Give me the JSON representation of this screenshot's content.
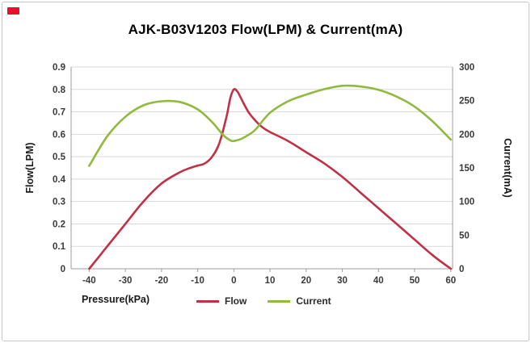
{
  "corner_mark_color": "#e8112d",
  "chart_data": {
    "type": "line",
    "title": "AJK-B03V1203 Flow(LPM) & Current(mA)",
    "xlabel": "Pressure(kPa)",
    "ylabel_left": "Flow(LPM)",
    "ylabel_right": "Current(mA)",
    "xlim": [
      -45,
      60.5
    ],
    "ylim_left": [
      0,
      0.9
    ],
    "ylim_right": [
      0,
      300
    ],
    "x_ticks": [
      -40,
      -30,
      -20,
      -10,
      0,
      10,
      20,
      30,
      40,
      50,
      60
    ],
    "left_ticks": [
      0,
      0.1,
      0.2,
      0.3,
      0.4,
      0.5,
      0.6,
      0.7,
      0.8,
      0.9
    ],
    "right_ticks": [
      0,
      50,
      100,
      150,
      200,
      250,
      300
    ],
    "grid": true,
    "grid_color": "#d9d9d9",
    "axis_color": "#9e9e9e",
    "legend_position": "bottom",
    "series": [
      {
        "name": "Flow",
        "axis": "left",
        "color": "#c13145",
        "x": [
          -40,
          -35,
          -30,
          -25,
          -20,
          -15,
          -12,
          -10,
          -8,
          -6,
          -4,
          -2,
          -1,
          0,
          1,
          2,
          4,
          6,
          8,
          10,
          15,
          20,
          25,
          30,
          35,
          40,
          45,
          50,
          55,
          60
        ],
        "y": [
          0,
          0.1,
          0.2,
          0.3,
          0.38,
          0.43,
          0.45,
          0.46,
          0.47,
          0.5,
          0.56,
          0.68,
          0.76,
          0.8,
          0.79,
          0.76,
          0.7,
          0.66,
          0.63,
          0.61,
          0.57,
          0.52,
          0.47,
          0.41,
          0.34,
          0.27,
          0.2,
          0.13,
          0.06,
          0
        ]
      },
      {
        "name": "Current",
        "axis": "right",
        "color": "#8fba3c",
        "x": [
          -40,
          -35,
          -30,
          -25,
          -20,
          -15,
          -10,
          -6,
          -3,
          -1,
          0,
          2,
          4,
          6,
          10,
          15,
          20,
          25,
          30,
          35,
          40,
          45,
          50,
          55,
          60
        ],
        "y": [
          153,
          197,
          226,
          243,
          249,
          248,
          237,
          218,
          199,
          191,
          190,
          193,
          199,
          207,
          232,
          249,
          259,
          267,
          272,
          271,
          266,
          256,
          241,
          219,
          192
        ]
      }
    ]
  }
}
